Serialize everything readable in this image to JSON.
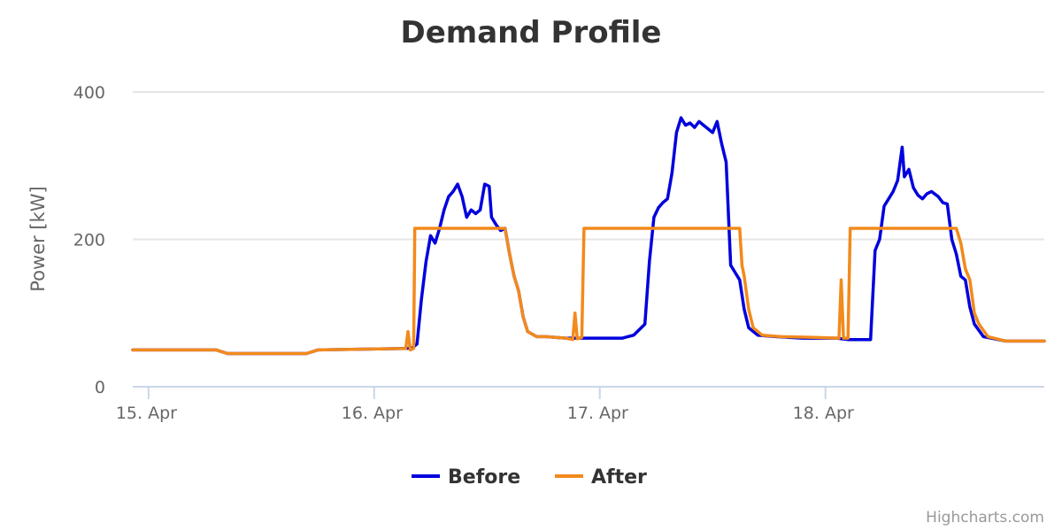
{
  "chart_data": {
    "type": "line",
    "title": "Demand Profile",
    "ylabel": "Power [kW]",
    "xlabel": "",
    "x_unit": "days (0 = 15. Apr)",
    "xlim": [
      -0.07,
      3.97
    ],
    "ylim": [
      0,
      400
    ],
    "yticks": [
      0,
      200,
      400
    ],
    "xticks": [
      {
        "x": 0,
        "label": "15. Apr"
      },
      {
        "x": 1,
        "label": "16. Apr"
      },
      {
        "x": 2,
        "label": "17. Apr"
      },
      {
        "x": 3,
        "label": "18. Apr"
      }
    ],
    "grid": true,
    "legend_position": "bottom-center",
    "series": [
      {
        "name": "Before",
        "color": "#0000dd",
        "points": [
          [
            -0.07,
            50
          ],
          [
            0.3,
            50
          ],
          [
            0.35,
            45
          ],
          [
            0.7,
            45
          ],
          [
            0.75,
            50
          ],
          [
            1.14,
            52
          ],
          [
            1.17,
            53
          ],
          [
            1.19,
            58
          ],
          [
            1.21,
            120
          ],
          [
            1.23,
            170
          ],
          [
            1.25,
            205
          ],
          [
            1.27,
            195
          ],
          [
            1.29,
            215
          ],
          [
            1.31,
            240
          ],
          [
            1.33,
            258
          ],
          [
            1.35,
            265
          ],
          [
            1.37,
            275
          ],
          [
            1.39,
            258
          ],
          [
            1.41,
            230
          ],
          [
            1.43,
            240
          ],
          [
            1.45,
            235
          ],
          [
            1.47,
            240
          ],
          [
            1.49,
            275
          ],
          [
            1.51,
            272
          ],
          [
            1.52,
            230
          ],
          [
            1.54,
            220
          ],
          [
            1.56,
            212
          ],
          [
            1.58,
            215
          ],
          [
            1.6,
            180
          ],
          [
            1.62,
            150
          ],
          [
            1.64,
            130
          ],
          [
            1.66,
            95
          ],
          [
            1.68,
            75
          ],
          [
            1.72,
            68
          ],
          [
            1.76,
            68
          ],
          [
            1.85,
            66
          ],
          [
            2.05,
            66
          ],
          [
            2.1,
            66
          ],
          [
            2.15,
            70
          ],
          [
            2.2,
            85
          ],
          [
            2.22,
            170
          ],
          [
            2.24,
            230
          ],
          [
            2.26,
            243
          ],
          [
            2.28,
            250
          ],
          [
            2.3,
            255
          ],
          [
            2.32,
            290
          ],
          [
            2.34,
            345
          ],
          [
            2.36,
            365
          ],
          [
            2.38,
            355
          ],
          [
            2.4,
            358
          ],
          [
            2.42,
            352
          ],
          [
            2.44,
            360
          ],
          [
            2.46,
            355
          ],
          [
            2.48,
            350
          ],
          [
            2.5,
            345
          ],
          [
            2.52,
            360
          ],
          [
            2.54,
            330
          ],
          [
            2.56,
            305
          ],
          [
            2.58,
            165
          ],
          [
            2.6,
            155
          ],
          [
            2.62,
            145
          ],
          [
            2.64,
            105
          ],
          [
            2.66,
            80
          ],
          [
            2.7,
            70
          ],
          [
            2.78,
            68
          ],
          [
            2.9,
            66
          ],
          [
            3.05,
            66
          ],
          [
            3.1,
            64
          ],
          [
            3.2,
            64
          ],
          [
            3.22,
            185
          ],
          [
            3.24,
            200
          ],
          [
            3.26,
            245
          ],
          [
            3.28,
            255
          ],
          [
            3.3,
            265
          ],
          [
            3.32,
            280
          ],
          [
            3.34,
            325
          ],
          [
            3.35,
            285
          ],
          [
            3.37,
            295
          ],
          [
            3.39,
            270
          ],
          [
            3.41,
            260
          ],
          [
            3.43,
            255
          ],
          [
            3.45,
            262
          ],
          [
            3.47,
            265
          ],
          [
            3.5,
            258
          ],
          [
            3.52,
            250
          ],
          [
            3.54,
            248
          ],
          [
            3.56,
            200
          ],
          [
            3.58,
            180
          ],
          [
            3.6,
            150
          ],
          [
            3.62,
            145
          ],
          [
            3.64,
            108
          ],
          [
            3.66,
            85
          ],
          [
            3.7,
            68
          ],
          [
            3.8,
            62
          ],
          [
            3.97,
            62
          ]
        ]
      },
      {
        "name": "After",
        "color": "#f28a1c",
        "points": [
          [
            -0.07,
            50
          ],
          [
            0.3,
            50
          ],
          [
            0.35,
            45
          ],
          [
            0.7,
            45
          ],
          [
            0.75,
            50
          ],
          [
            1.14,
            52
          ],
          [
            1.15,
            75
          ],
          [
            1.16,
            50
          ],
          [
            1.175,
            52
          ],
          [
            1.18,
            215
          ],
          [
            1.56,
            215
          ],
          [
            1.58,
            215
          ],
          [
            1.6,
            180
          ],
          [
            1.62,
            150
          ],
          [
            1.64,
            130
          ],
          [
            1.66,
            95
          ],
          [
            1.68,
            75
          ],
          [
            1.72,
            68
          ],
          [
            1.76,
            68
          ],
          [
            1.85,
            66
          ],
          [
            1.88,
            64
          ],
          [
            1.89,
            100
          ],
          [
            1.9,
            65
          ],
          [
            1.92,
            67
          ],
          [
            1.93,
            215
          ],
          [
            2.62,
            215
          ],
          [
            2.63,
            165
          ],
          [
            2.64,
            150
          ],
          [
            2.66,
            105
          ],
          [
            2.68,
            80
          ],
          [
            2.72,
            70
          ],
          [
            2.8,
            68
          ],
          [
            2.95,
            67
          ],
          [
            3.06,
            66
          ],
          [
            3.07,
            145
          ],
          [
            3.08,
            66
          ],
          [
            3.1,
            66
          ],
          [
            3.11,
            215
          ],
          [
            3.58,
            215
          ],
          [
            3.6,
            195
          ],
          [
            3.62,
            160
          ],
          [
            3.64,
            145
          ],
          [
            3.66,
            100
          ],
          [
            3.68,
            85
          ],
          [
            3.72,
            68
          ],
          [
            3.8,
            62
          ],
          [
            3.97,
            62
          ]
        ]
      }
    ]
  },
  "credit": "Highcharts.com"
}
